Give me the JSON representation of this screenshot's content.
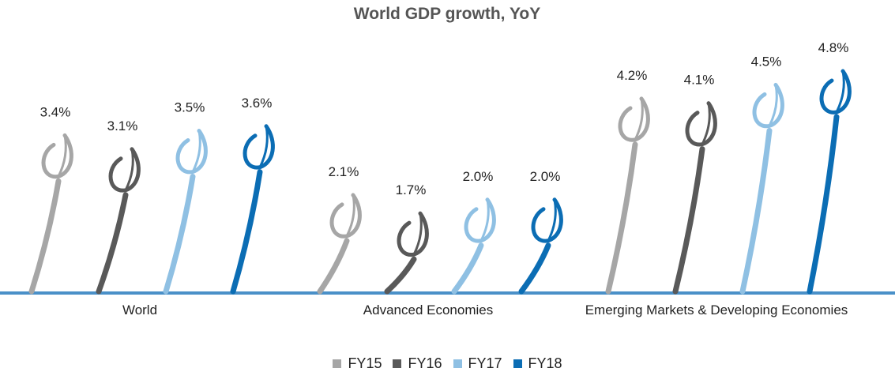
{
  "chart_data": {
    "type": "bar",
    "title": "World GDP growth, YoY",
    "categories": [
      "World",
      "Advanced Economies",
      "Emerging Markets & Developing Economies"
    ],
    "series": [
      {
        "name": "FY15",
        "color": "#a6a6a6",
        "values": [
          3.4,
          2.1,
          4.2
        ],
        "value_labels": [
          "3.4%",
          "2.1%",
          "4.2%"
        ]
      },
      {
        "name": "FY16",
        "color": "#595959",
        "values": [
          3.1,
          1.7,
          4.1
        ],
        "value_labels": [
          "3.1%",
          "1.7%",
          "4.1%"
        ]
      },
      {
        "name": "FY17",
        "color": "#8fc0e3",
        "values": [
          3.5,
          2.0,
          4.5
        ],
        "value_labels": [
          "3.5%",
          "2.0%",
          "4.5%"
        ]
      },
      {
        "name": "FY18",
        "color": "#0b6db4",
        "values": [
          3.6,
          2.0,
          4.8
        ],
        "value_labels": [
          "3.6%",
          "2.0%",
          "4.8%"
        ]
      }
    ]
  }
}
